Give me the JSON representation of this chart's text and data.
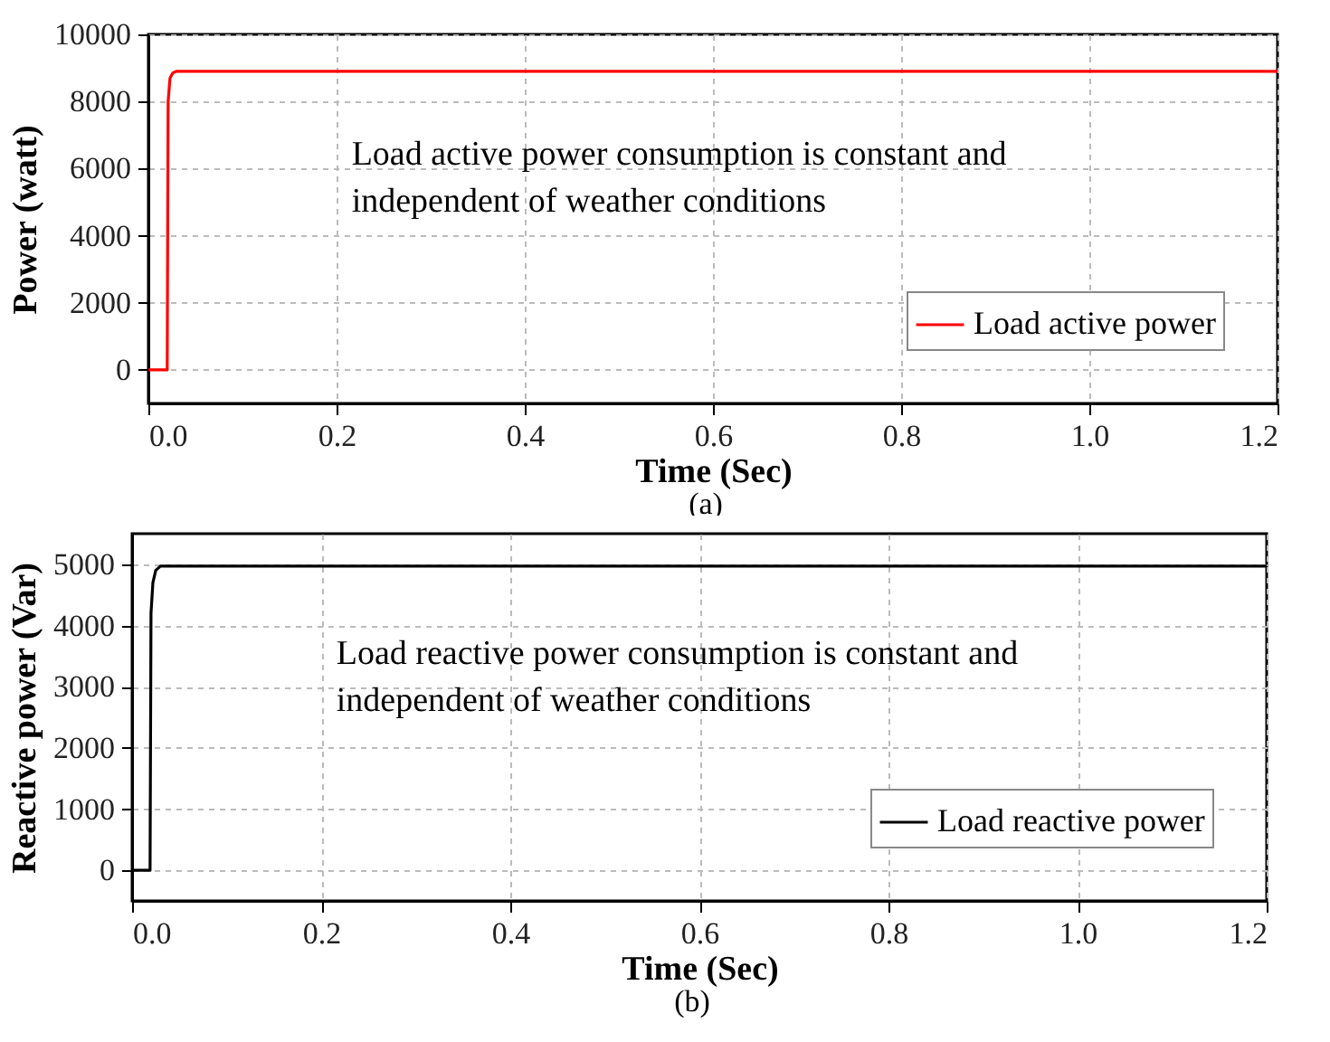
{
  "chart_data": [
    {
      "type": "line",
      "xlabel": "Time (Sec)",
      "ylabel": "Power (watt)",
      "xlim": [
        0,
        1.2
      ],
      "xticks": [
        {
          "value": 0,
          "label": "0.0"
        },
        {
          "value": 0.2,
          "label": "0.2"
        },
        {
          "value": 0.4,
          "label": "0.4"
        },
        {
          "value": 0.6,
          "label": "0.6"
        },
        {
          "value": 0.8,
          "label": "0.8"
        },
        {
          "value": 1,
          "label": "1.0"
        },
        {
          "value": 1.2,
          "label": "1.2"
        }
      ],
      "ylim": [
        -1000,
        10000
      ],
      "yticks": [
        0,
        2000,
        4000,
        6000,
        8000,
        10000
      ],
      "grid": true,
      "legend": "bottom right",
      "annotations": [
        "Load active power consumption is constant and independent of weather conditions",
        "(a)"
      ],
      "series": [
        {
          "name": "Load active power",
          "color": "#ff0000",
          "x": [
            0,
            0.02,
            0.021,
            0.023,
            0.026,
            0.03,
            0.035,
            1.2
          ],
          "values": [
            0,
            0,
            8000,
            8700,
            8850,
            8900,
            8900,
            8900
          ]
        }
      ]
    },
    {
      "type": "line",
      "xlabel": "Time (Sec)",
      "ylabel": "Reactive power (Var)",
      "xlim": [
        0,
        1.2
      ],
      "xticks": [
        {
          "value": 0,
          "label": "0.0"
        },
        {
          "value": 0.2,
          "label": "0.2"
        },
        {
          "value": 0.4,
          "label": "0.4"
        },
        {
          "value": 0.6,
          "label": "0.6"
        },
        {
          "value": 0.8,
          "label": "0.8"
        },
        {
          "value": 1,
          "label": "1.0"
        },
        {
          "value": 1.2,
          "label": "1.2"
        }
      ],
      "ylim": [
        -500,
        5500
      ],
      "yticks": [
        0,
        1000,
        2000,
        3000,
        4000,
        5000
      ],
      "grid": true,
      "legend": "bottom right",
      "annotations": [
        "Load reactive power consumption is constant and independent of weather conditions",
        "(b)"
      ],
      "series": [
        {
          "name": "Load reactive power",
          "color": "#000000",
          "x": [
            0,
            0.019,
            0.02,
            0.022,
            0.025,
            0.03,
            1.2
          ],
          "values": [
            0,
            0,
            4200,
            4700,
            4900,
            4970,
            4970
          ]
        }
      ]
    }
  ]
}
